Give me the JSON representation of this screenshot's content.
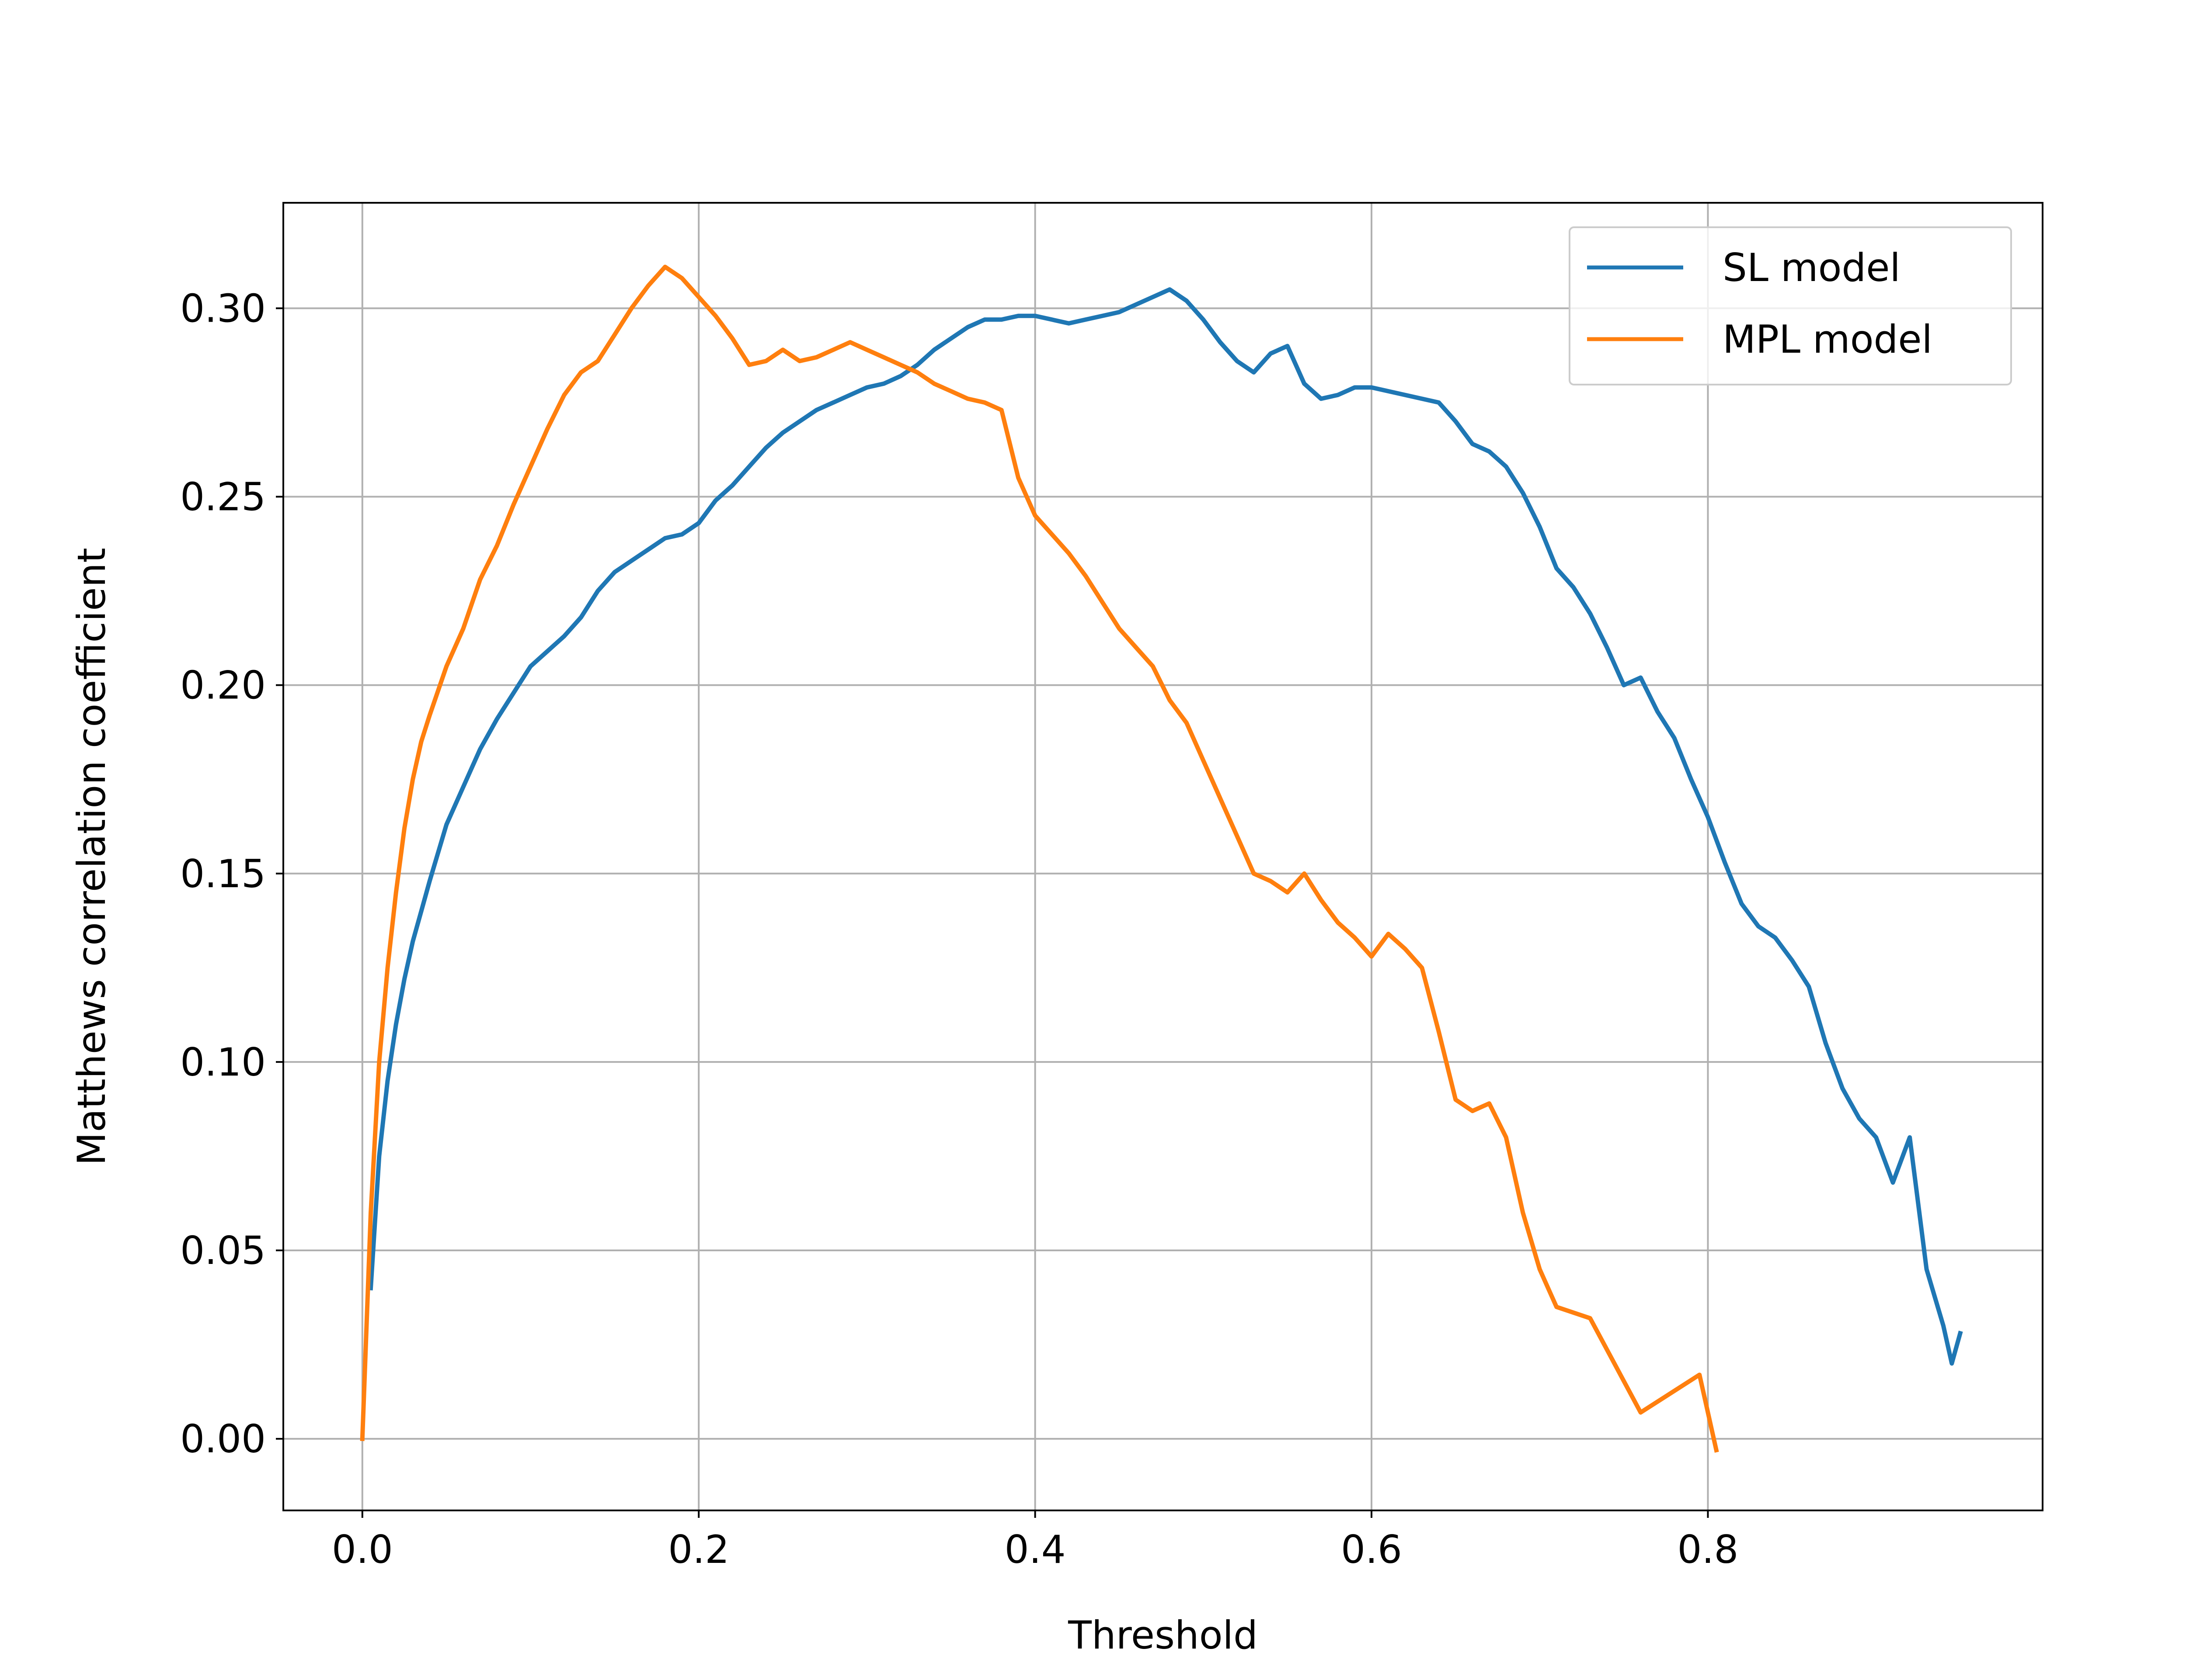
{
  "chart_data": {
    "type": "line",
    "title": "",
    "xlabel": "Threshold",
    "ylabel": "Matthews correlation coefficient",
    "xlim": [
      -0.047,
      0.999
    ],
    "ylim": [
      -0.019,
      0.328
    ],
    "xticks": [
      0.0,
      0.2,
      0.4,
      0.6,
      0.8
    ],
    "xtick_labels": [
      "0.0",
      "0.2",
      "0.4",
      "0.6",
      "0.8"
    ],
    "yticks": [
      0.0,
      0.05,
      0.1,
      0.15,
      0.2,
      0.25,
      0.3
    ],
    "ytick_labels": [
      "0.00",
      "0.05",
      "0.10",
      "0.15",
      "0.20",
      "0.25",
      "0.30"
    ],
    "grid": true,
    "legend_position": "top-right",
    "series": [
      {
        "name": "SL model",
        "color": "#1f77b4",
        "x": [
          0.005,
          0.01,
          0.015,
          0.02,
          0.025,
          0.03,
          0.035,
          0.04,
          0.05,
          0.06,
          0.07,
          0.08,
          0.09,
          0.1,
          0.11,
          0.12,
          0.13,
          0.14,
          0.15,
          0.16,
          0.17,
          0.18,
          0.19,
          0.2,
          0.21,
          0.22,
          0.23,
          0.24,
          0.25,
          0.26,
          0.27,
          0.28,
          0.29,
          0.3,
          0.31,
          0.32,
          0.33,
          0.34,
          0.35,
          0.36,
          0.37,
          0.38,
          0.39,
          0.4,
          0.41,
          0.42,
          0.43,
          0.44,
          0.45,
          0.46,
          0.47,
          0.48,
          0.49,
          0.5,
          0.51,
          0.52,
          0.53,
          0.54,
          0.55,
          0.56,
          0.57,
          0.58,
          0.59,
          0.6,
          0.61,
          0.62,
          0.63,
          0.64,
          0.65,
          0.66,
          0.67,
          0.68,
          0.69,
          0.7,
          0.71,
          0.72,
          0.73,
          0.74,
          0.75,
          0.76,
          0.77,
          0.78,
          0.79,
          0.8,
          0.81,
          0.82,
          0.83,
          0.84,
          0.85,
          0.86,
          0.87,
          0.88,
          0.89,
          0.9,
          0.91,
          0.92,
          0.93,
          0.94,
          0.945,
          0.95
        ],
        "y": [
          0.04,
          0.075,
          0.095,
          0.11,
          0.122,
          0.132,
          0.14,
          0.148,
          0.163,
          0.173,
          0.183,
          0.191,
          0.198,
          0.205,
          0.209,
          0.213,
          0.218,
          0.225,
          0.23,
          0.233,
          0.236,
          0.239,
          0.24,
          0.243,
          0.249,
          0.253,
          0.258,
          0.263,
          0.267,
          0.27,
          0.273,
          0.275,
          0.277,
          0.279,
          0.28,
          0.282,
          0.285,
          0.289,
          0.292,
          0.295,
          0.297,
          0.297,
          0.298,
          0.298,
          0.297,
          0.296,
          0.297,
          0.298,
          0.299,
          0.301,
          0.303,
          0.305,
          0.302,
          0.297,
          0.291,
          0.286,
          0.283,
          0.288,
          0.29,
          0.28,
          0.276,
          0.277,
          0.279,
          0.279,
          0.278,
          0.277,
          0.276,
          0.275,
          0.27,
          0.264,
          0.262,
          0.258,
          0.251,
          0.242,
          0.231,
          0.226,
          0.219,
          0.21,
          0.2,
          0.202,
          0.193,
          0.186,
          0.175,
          0.165,
          0.153,
          0.142,
          0.136,
          0.133,
          0.127,
          0.12,
          0.105,
          0.093,
          0.085,
          0.08,
          0.068,
          0.08,
          0.045,
          0.03,
          0.02,
          0.028
        ]
      },
      {
        "name": "MPL model",
        "color": "#ff7f0e",
        "x": [
          0.0,
          0.005,
          0.01,
          0.015,
          0.02,
          0.025,
          0.03,
          0.035,
          0.04,
          0.05,
          0.06,
          0.07,
          0.08,
          0.09,
          0.1,
          0.11,
          0.12,
          0.13,
          0.14,
          0.15,
          0.16,
          0.17,
          0.18,
          0.19,
          0.2,
          0.21,
          0.22,
          0.23,
          0.24,
          0.25,
          0.26,
          0.27,
          0.28,
          0.29,
          0.3,
          0.31,
          0.32,
          0.33,
          0.34,
          0.35,
          0.36,
          0.37,
          0.38,
          0.39,
          0.4,
          0.41,
          0.42,
          0.43,
          0.44,
          0.45,
          0.46,
          0.47,
          0.48,
          0.49,
          0.5,
          0.51,
          0.52,
          0.53,
          0.54,
          0.55,
          0.56,
          0.57,
          0.58,
          0.59,
          0.6,
          0.61,
          0.62,
          0.63,
          0.64,
          0.65,
          0.66,
          0.67,
          0.68,
          0.69,
          0.7,
          0.71,
          0.73,
          0.76,
          0.795,
          0.805
        ],
        "y": [
          0.0,
          0.06,
          0.1,
          0.125,
          0.145,
          0.162,
          0.175,
          0.185,
          0.192,
          0.205,
          0.215,
          0.228,
          0.237,
          0.248,
          0.258,
          0.268,
          0.277,
          0.283,
          0.286,
          0.293,
          0.3,
          0.306,
          0.311,
          0.308,
          0.303,
          0.298,
          0.292,
          0.285,
          0.286,
          0.289,
          0.286,
          0.287,
          0.289,
          0.291,
          0.289,
          0.287,
          0.285,
          0.283,
          0.28,
          0.278,
          0.276,
          0.275,
          0.273,
          0.255,
          0.245,
          0.24,
          0.235,
          0.229,
          0.222,
          0.215,
          0.21,
          0.205,
          0.196,
          0.19,
          0.18,
          0.17,
          0.16,
          0.15,
          0.148,
          0.145,
          0.15,
          0.143,
          0.137,
          0.133,
          0.128,
          0.134,
          0.13,
          0.125,
          0.108,
          0.09,
          0.087,
          0.089,
          0.08,
          0.06,
          0.045,
          0.035,
          0.032,
          0.007,
          0.017,
          -0.003
        ]
      }
    ]
  }
}
